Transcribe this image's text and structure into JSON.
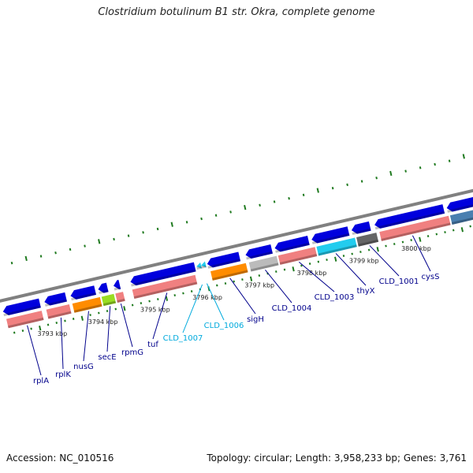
{
  "title": "Clostridium botulinum B1 str. Okra, complete genome",
  "accession": "Accession: NC_010516",
  "topology": "Topology: circular; Length: 3,958,233 bp; Genes: 3,761",
  "colors": {
    "backbone": "#808080",
    "tick": "#1f7a1f",
    "cds": "#0000dd",
    "gene": "#f08080",
    "label": "#00008b",
    "label_highlight": "#00aadd"
  },
  "scale": {
    "unit": "kbp",
    "ticks": [
      "3793 kbp",
      "3794 kbp",
      "3795 kbp",
      "3796 kbp",
      "3797 kbp",
      "3798 kbp",
      "3799 kbp",
      "3800 kbp"
    ]
  },
  "genes": [
    {
      "name": "rplA",
      "color": "#00008b"
    },
    {
      "name": "rplK",
      "color": "#00008b"
    },
    {
      "name": "nusG",
      "color": "#00008b"
    },
    {
      "name": "secE",
      "color": "#00008b"
    },
    {
      "name": "rpmG",
      "color": "#00008b"
    },
    {
      "name": "tuf",
      "color": "#00008b"
    },
    {
      "name": "CLD_1007",
      "color": "#00aadd"
    },
    {
      "name": "CLD_1006",
      "color": "#00aadd"
    },
    {
      "name": "sigH",
      "color": "#00008b"
    },
    {
      "name": "CLD_1004",
      "color": "#00008b"
    },
    {
      "name": "CLD_1003",
      "color": "#00008b"
    },
    {
      "name": "thyX",
      "color": "#00008b"
    },
    {
      "name": "CLD_1001",
      "color": "#00008b"
    },
    {
      "name": "cysS",
      "color": "#00008b"
    }
  ],
  "feature_colors": {
    "orange": "#ff8c00",
    "lime": "#99dd22",
    "gray": "#bbbbbb",
    "cyan": "#22ccee",
    "dark_gray": "#666666",
    "steel": "#4a7fb0"
  }
}
